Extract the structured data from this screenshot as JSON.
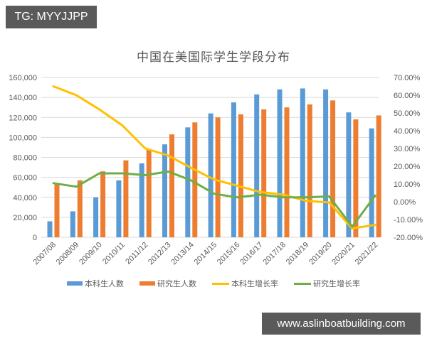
{
  "watermark_top": "TG: MYYJJPP",
  "watermark_bottom": "www.aslinboatbuilding.com",
  "colors": {
    "undergrad_bar": "#5b9bd5",
    "grad_bar": "#ed7d31",
    "undergrad_line": "#ffc000",
    "grad_line": "#70ad47",
    "grid": "#d9d9d9",
    "text": "#595959"
  },
  "chart_data": {
    "type": "bar",
    "subtype": "combo bar + line (dual axis)",
    "title": "中国在美国际学生学段分布",
    "xlabel": "",
    "ylabel": "",
    "categories": [
      "2007/08",
      "2008/09",
      "2009/10",
      "2010/11",
      "2011/12",
      "2012/13",
      "2013/14",
      "2014/15",
      "2015/16",
      "2016/17",
      "2017/18",
      "2018/19",
      "2019/20",
      "2020/21",
      "2021/22"
    ],
    "series": [
      {
        "name": "本科生人数",
        "type": "bar",
        "axis": "left",
        "values": [
          16000,
          26000,
          40000,
          57000,
          74000,
          93000,
          110000,
          124000,
          135000,
          143000,
          148000,
          149000,
          148000,
          125000,
          109000
        ]
      },
      {
        "name": "研究生人数",
        "type": "bar",
        "axis": "left",
        "values": [
          53000,
          57000,
          66000,
          77000,
          88000,
          103000,
          115000,
          120000,
          123000,
          128000,
          130000,
          133000,
          137000,
          118000,
          122000
        ]
      },
      {
        "name": "本科生增长率",
        "type": "line",
        "axis": "right",
        "values": [
          0.65,
          0.6,
          0.52,
          0.43,
          0.3,
          0.26,
          0.19,
          0.125,
          0.09,
          0.055,
          0.04,
          0.005,
          -0.004,
          -0.15,
          -0.13
        ]
      },
      {
        "name": "研究生增长率",
        "type": "line",
        "axis": "right",
        "values": [
          0.105,
          0.085,
          0.16,
          0.16,
          0.15,
          0.17,
          0.12,
          0.045,
          0.025,
          0.04,
          0.025,
          0.025,
          0.03,
          -0.14,
          0.035
        ]
      }
    ],
    "left_axis": {
      "min": 0,
      "max": 160000,
      "step": 20000,
      "ticks": [
        "0",
        "20,000",
        "40,000",
        "60,000",
        "80,000",
        "100,000",
        "120,000",
        "140,000",
        "160,000"
      ]
    },
    "right_axis": {
      "min": -0.2,
      "max": 0.7,
      "step": 0.1,
      "ticks": [
        "-20.00%",
        "-10.00%",
        "0.00%",
        "10.00%",
        "20.00%",
        "30.00%",
        "40.00%",
        "50.00%",
        "60.00%",
        "70.00%"
      ]
    },
    "grid": true,
    "legend_position": "bottom"
  },
  "legend": [
    {
      "label": "本科生人数",
      "kind": "bar",
      "color": "#5b9bd5"
    },
    {
      "label": "研究生人数",
      "kind": "bar",
      "color": "#ed7d31"
    },
    {
      "label": "本科生增长率",
      "kind": "line",
      "color": "#ffc000"
    },
    {
      "label": "研究生增长率",
      "kind": "line",
      "color": "#70ad47"
    }
  ]
}
